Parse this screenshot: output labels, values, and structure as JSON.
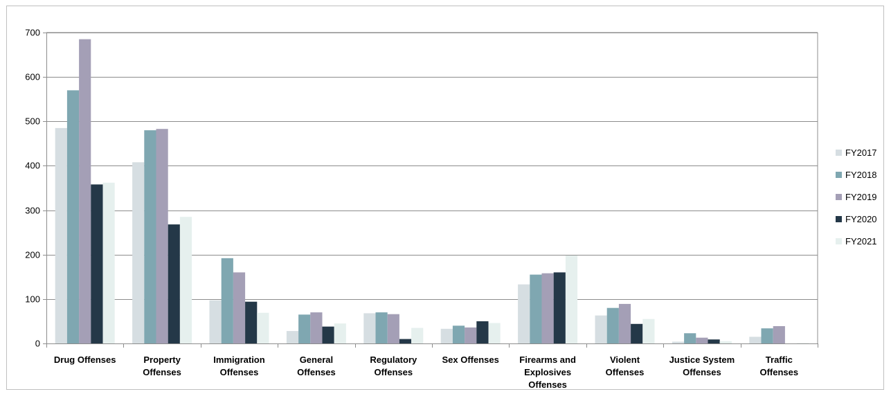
{
  "chart_data": {
    "type": "bar",
    "categories": [
      [
        "Drug Offenses"
      ],
      [
        "Property",
        "Offenses"
      ],
      [
        "Immigration",
        "Offenses"
      ],
      [
        "General",
        "Offenses"
      ],
      [
        "Regulatory",
        "Offenses"
      ],
      [
        "Sex Offenses"
      ],
      [
        "Firearms and",
        "Explosives",
        "Offenses"
      ],
      [
        "Violent",
        "Offenses"
      ],
      [
        "Justice System",
        "Offenses"
      ],
      [
        "Traffic",
        "Offenses"
      ]
    ],
    "series": [
      {
        "name": "FY2017",
        "color": "#d6dee2",
        "values": [
          485,
          408,
          97,
          28,
          68,
          33,
          133,
          63,
          4,
          15
        ]
      },
      {
        "name": "FY2018",
        "color": "#7fa7b1",
        "values": [
          570,
          480,
          192,
          65,
          70,
          40,
          155,
          80,
          23,
          34
        ]
      },
      {
        "name": "FY2019",
        "color": "#a49fb6",
        "values": [
          685,
          483,
          160,
          70,
          66,
          36,
          158,
          89,
          13,
          39
        ]
      },
      {
        "name": "FY2020",
        "color": "#243848",
        "values": [
          358,
          268,
          94,
          38,
          10,
          50,
          160,
          44,
          9,
          0
        ]
      },
      {
        "name": "FY2021",
        "color": "#e6f0ee",
        "values": [
          362,
          285,
          69,
          45,
          35,
          46,
          198,
          55,
          5,
          1
        ]
      }
    ],
    "yticks": [
      "0",
      "100",
      "200",
      "300",
      "400",
      "500",
      "600",
      "700"
    ],
    "ylim": [
      0,
      700
    ],
    "grid": true,
    "legend": "right"
  }
}
